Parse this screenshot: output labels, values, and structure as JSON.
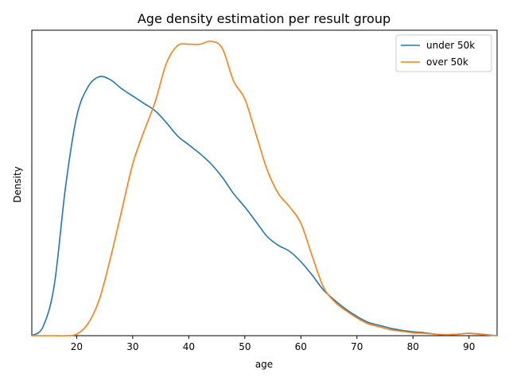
{
  "chart_data": {
    "type": "line",
    "title": "Age density estimation per result group",
    "xlabel": "age",
    "ylabel": "Density",
    "xlim": [
      12,
      95
    ],
    "ylim": [
      0,
      1.0
    ],
    "x_ticks": [
      20,
      30,
      40,
      50,
      60,
      70,
      80,
      90
    ],
    "y_ticks_shown": false,
    "grid": false,
    "legend_position": "upper right",
    "series": [
      {
        "name": "under 50k",
        "color": "#1f77b4",
        "x": [
          12,
          14,
          16,
          18,
          20,
          22,
          24,
          26,
          28,
          30,
          32,
          34,
          36,
          38,
          40,
          42,
          44,
          46,
          48,
          50,
          52,
          54,
          56,
          58,
          60,
          62,
          64,
          66,
          68,
          70,
          72,
          74,
          76,
          78,
          80,
          82,
          84,
          86,
          88,
          90,
          92,
          95
        ],
        "y": [
          0.0,
          0.03,
          0.17,
          0.5,
          0.74,
          0.84,
          0.875,
          0.865,
          0.835,
          0.81,
          0.785,
          0.76,
          0.72,
          0.675,
          0.645,
          0.615,
          0.58,
          0.535,
          0.48,
          0.435,
          0.385,
          0.335,
          0.305,
          0.285,
          0.25,
          0.205,
          0.155,
          0.12,
          0.09,
          0.065,
          0.045,
          0.035,
          0.025,
          0.018,
          0.013,
          0.01,
          0.005,
          0.003,
          0.005,
          0.008,
          0.005,
          0.0
        ]
      },
      {
        "name": "over 50k",
        "color": "#ff7f0e",
        "x": [
          12,
          14,
          16,
          18,
          20,
          22,
          24,
          26,
          28,
          30,
          32,
          34,
          36,
          38,
          40,
          42,
          44,
          46,
          48,
          50,
          52,
          54,
          56,
          58,
          60,
          62,
          64,
          66,
          68,
          70,
          72,
          74,
          76,
          78,
          80,
          82,
          84,
          86,
          88,
          90,
          92,
          95
        ],
        "y": [
          0.0,
          0.0,
          0.0,
          0.0,
          0.005,
          0.04,
          0.12,
          0.26,
          0.42,
          0.58,
          0.69,
          0.79,
          0.92,
          0.98,
          0.985,
          0.985,
          0.995,
          0.97,
          0.86,
          0.8,
          0.68,
          0.56,
          0.48,
          0.435,
          0.38,
          0.27,
          0.165,
          0.115,
          0.085,
          0.06,
          0.04,
          0.03,
          0.02,
          0.015,
          0.01,
          0.008,
          0.005,
          0.003,
          0.005,
          0.008,
          0.004,
          0.0
        ]
      }
    ]
  }
}
